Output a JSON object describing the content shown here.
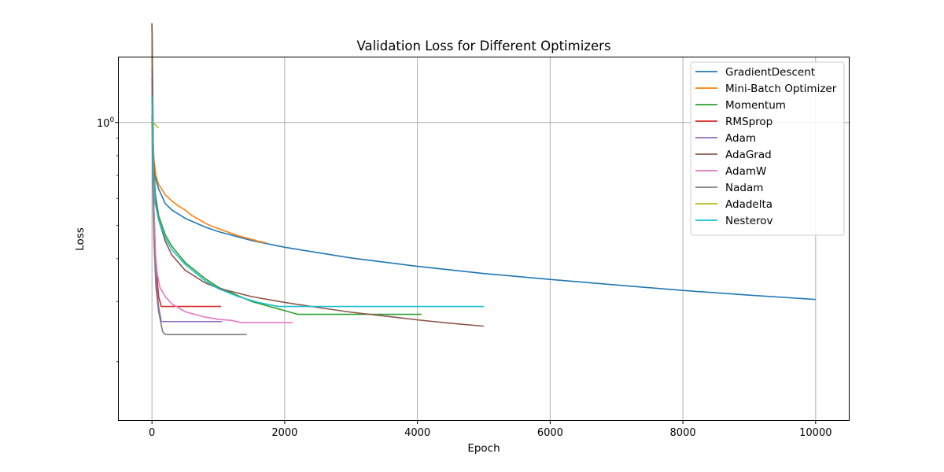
{
  "chart_data": {
    "type": "line",
    "title": "Validation Loss for Different Optimizers",
    "xlabel": "Epoch",
    "ylabel": "Loss",
    "xlim": [
      -500,
      10500
    ],
    "ylim": [
      0.135,
      1.55
    ],
    "yscale": "log",
    "xticks": [
      0,
      2000,
      4000,
      6000,
      8000,
      10000
    ],
    "yticks": [
      {
        "value": 1.0,
        "label": "10",
        "exp": "0"
      }
    ],
    "grid": true,
    "legend_position": "top-right",
    "series": [
      {
        "name": "GradientDescent",
        "color": "#1f77b4",
        "points": [
          [
            0,
            1.95
          ],
          [
            10,
            0.95
          ],
          [
            30,
            0.75
          ],
          [
            60,
            0.68
          ],
          [
            100,
            0.64
          ],
          [
            200,
            0.58
          ],
          [
            300,
            0.555
          ],
          [
            500,
            0.525
          ],
          [
            800,
            0.495
          ],
          [
            1000,
            0.48
          ],
          [
            1500,
            0.452
          ],
          [
            2000,
            0.432
          ],
          [
            3000,
            0.402
          ],
          [
            4000,
            0.38
          ],
          [
            5000,
            0.362
          ],
          [
            6000,
            0.348
          ],
          [
            7000,
            0.335
          ],
          [
            8000,
            0.323
          ],
          [
            9000,
            0.313
          ],
          [
            10000,
            0.304
          ]
        ]
      },
      {
        "name": "Mini-Batch Optimizer",
        "color": "#ff7f0e",
        "points": [
          [
            0,
            1.55
          ],
          [
            10,
            0.95
          ],
          [
            30,
            0.78
          ],
          [
            60,
            0.7
          ],
          [
            100,
            0.66
          ],
          [
            200,
            0.615
          ],
          [
            300,
            0.59
          ],
          [
            400,
            0.57
          ],
          [
            500,
            0.555
          ],
          [
            600,
            0.535
          ],
          [
            700,
            0.522
          ],
          [
            800,
            0.508
          ],
          [
            900,
            0.498
          ],
          [
            1000,
            0.49
          ],
          [
            1100,
            0.482
          ],
          [
            1200,
            0.474
          ],
          [
            1300,
            0.467
          ],
          [
            1400,
            0.461
          ],
          [
            1500,
            0.456
          ],
          [
            1600,
            0.45
          ],
          [
            1720,
            0.445
          ]
        ]
      },
      {
        "name": "Momentum",
        "color": "#2ca02c",
        "points": [
          [
            0,
            1.95
          ],
          [
            20,
            0.8
          ],
          [
            50,
            0.62
          ],
          [
            100,
            0.535
          ],
          [
            200,
            0.47
          ],
          [
            300,
            0.435
          ],
          [
            500,
            0.39
          ],
          [
            800,
            0.35
          ],
          [
            1000,
            0.33
          ],
          [
            1500,
            0.3
          ],
          [
            2000,
            0.282
          ],
          [
            2200,
            0.275
          ],
          [
            4060,
            0.275
          ]
        ]
      },
      {
        "name": "RMSprop",
        "color": "#d62728",
        "points": [
          [
            0,
            1.35
          ],
          [
            10,
            0.9
          ],
          [
            30,
            0.55
          ],
          [
            60,
            0.38
          ],
          [
            100,
            0.31
          ],
          [
            140,
            0.29
          ],
          [
            1040,
            0.29
          ]
        ]
      },
      {
        "name": "Adam",
        "color": "#9467bd",
        "points": [
          [
            0,
            1.45
          ],
          [
            10,
            0.9
          ],
          [
            30,
            0.55
          ],
          [
            60,
            0.35
          ],
          [
            100,
            0.29
          ],
          [
            140,
            0.262
          ],
          [
            1060,
            0.262
          ]
        ]
      },
      {
        "name": "AdaGrad",
        "color": "#8c564b",
        "points": [
          [
            0,
            1.95
          ],
          [
            20,
            0.8
          ],
          [
            50,
            0.6
          ],
          [
            100,
            0.52
          ],
          [
            200,
            0.45
          ],
          [
            300,
            0.41
          ],
          [
            500,
            0.37
          ],
          [
            800,
            0.34
          ],
          [
            1000,
            0.328
          ],
          [
            1500,
            0.31
          ],
          [
            2000,
            0.298
          ],
          [
            2500,
            0.288
          ],
          [
            3000,
            0.279
          ],
          [
            3500,
            0.272
          ],
          [
            4000,
            0.265
          ],
          [
            4500,
            0.259
          ],
          [
            5000,
            0.254
          ]
        ]
      },
      {
        "name": "AdamW",
        "color": "#e377c2",
        "points": [
          [
            0,
            1.15
          ],
          [
            20,
            0.65
          ],
          [
            50,
            0.42
          ],
          [
            80,
            0.36
          ],
          [
            120,
            0.33
          ],
          [
            200,
            0.31
          ],
          [
            300,
            0.295
          ],
          [
            500,
            0.28
          ],
          [
            800,
            0.27
          ],
          [
            1000,
            0.266
          ],
          [
            1200,
            0.264
          ],
          [
            1350,
            0.26
          ],
          [
            2120,
            0.26
          ]
        ]
      },
      {
        "name": "Nadam",
        "color": "#7f7f7f",
        "points": [
          [
            0,
            1.05
          ],
          [
            10,
            0.7
          ],
          [
            30,
            0.45
          ],
          [
            60,
            0.33
          ],
          [
            100,
            0.28
          ],
          [
            160,
            0.245
          ],
          [
            200,
            0.24
          ],
          [
            1430,
            0.24
          ]
        ]
      },
      {
        "name": "Adadelta",
        "color": "#bcbd22",
        "points": [
          [
            0,
            1.02
          ],
          [
            20,
            1.0
          ],
          [
            50,
            0.985
          ],
          [
            100,
            0.965
          ]
        ]
      },
      {
        "name": "Nesterov",
        "color": "#17becf",
        "points": [
          [
            0,
            1.2
          ],
          [
            20,
            0.75
          ],
          [
            50,
            0.58
          ],
          [
            100,
            0.52
          ],
          [
            200,
            0.46
          ],
          [
            300,
            0.425
          ],
          [
            500,
            0.385
          ],
          [
            800,
            0.345
          ],
          [
            1000,
            0.327
          ],
          [
            1300,
            0.31
          ],
          [
            1600,
            0.298
          ],
          [
            1900,
            0.29
          ],
          [
            5000,
            0.29
          ]
        ]
      }
    ]
  }
}
